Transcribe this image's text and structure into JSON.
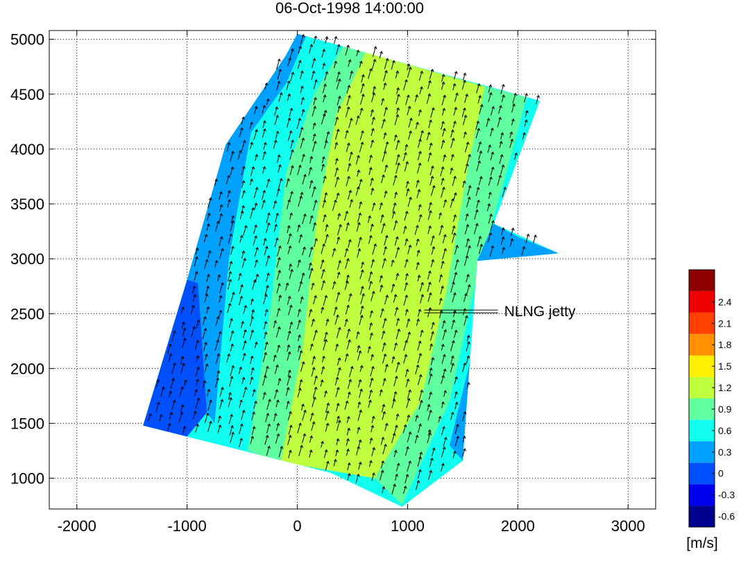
{
  "chart_data": {
    "type": "heatmap",
    "title": "06-Oct-1998 14:00:00",
    "xlabel": "",
    "ylabel": "",
    "xlim": [
      -2250,
      3250
    ],
    "ylim": [
      720,
      5080
    ],
    "xticks": [
      -2000,
      -1000,
      0,
      1000,
      2000,
      3000
    ],
    "xtick_labels": [
      "-2000",
      "-1000",
      "0",
      "1000",
      "2000",
      "3000"
    ],
    "yticks": [
      1000,
      1500,
      2000,
      2500,
      3000,
      3500,
      4000,
      4500,
      5000
    ],
    "ytick_labels": [
      "1000",
      "1500",
      "2000",
      "2500",
      "3000",
      "3500",
      "4000",
      "4500",
      "5000"
    ],
    "grid": true,
    "annotation": {
      "text": "NLNG jetty",
      "x": 1150,
      "y": 2520,
      "x_end": 1820
    },
    "colorbar": {
      "unit_label": "[m/s]",
      "tick_labels": [
        "2.4",
        "2.1",
        "1.8",
        "1.5",
        "1.2",
        "0.9",
        "0.6",
        "0.3",
        "0",
        "-0.3",
        "-0.6"
      ],
      "levels": [
        {
          "lower": -0.75,
          "upper": -0.45,
          "color": "#00008f"
        },
        {
          "lower": -0.45,
          "upper": -0.15,
          "color": "#0000ef"
        },
        {
          "lower": -0.15,
          "upper": 0.15,
          "color": "#0050ff"
        },
        {
          "lower": 0.15,
          "upper": 0.45,
          "color": "#00a0ff"
        },
        {
          "lower": 0.45,
          "upper": 0.75,
          "color": "#10ffef"
        },
        {
          "lower": 0.75,
          "upper": 1.05,
          "color": "#60ffa0"
        },
        {
          "lower": 1.05,
          "upper": 1.35,
          "color": "#bfff40"
        },
        {
          "lower": 1.35,
          "upper": 1.65,
          "color": "#ffef00"
        },
        {
          "lower": 1.65,
          "upper": 1.95,
          "color": "#ff9000"
        },
        {
          "lower": 1.95,
          "upper": 2.25,
          "color": "#ff4000"
        },
        {
          "lower": 2.25,
          "upper": 2.55,
          "color": "#ef0000"
        },
        {
          "lower": 2.55,
          "upper": 2.85,
          "color": "#8f0000"
        }
      ]
    },
    "domain_outline": [
      [
        -1400,
        1480
      ],
      [
        -1000,
        2810
      ],
      [
        -650,
        4040
      ],
      [
        -300,
        4560
      ],
      [
        -100,
        4860
      ],
      [
        0,
        5050
      ],
      [
        2200,
        4440
      ],
      [
        1780,
        3320
      ],
      [
        2370,
        3050
      ],
      [
        1630,
        2980
      ],
      [
        1500,
        1160
      ],
      [
        950,
        740
      ],
      [
        300,
        1050
      ]
    ],
    "velocity_bands": [
      {
        "value": 0.0,
        "color": "#0050ff",
        "polygon": [
          [
            -1400,
            1480
          ],
          [
            -1000,
            2810
          ],
          [
            -900,
            2780
          ],
          [
            -820,
            1600
          ],
          [
            -1000,
            1380
          ]
        ]
      },
      {
        "value": 0.3,
        "color": "#00a0ff",
        "polygon": [
          [
            -1000,
            2810
          ],
          [
            -650,
            4040
          ],
          [
            -300,
            4560
          ],
          [
            -100,
            4860
          ],
          [
            0,
            5050
          ],
          [
            80,
            5030
          ],
          [
            -100,
            4600
          ],
          [
            -420,
            4150
          ],
          [
            -620,
            3000
          ],
          [
            -750,
            1500
          ],
          [
            -820,
            1600
          ],
          [
            -900,
            2780
          ]
        ]
      },
      {
        "value": 0.6,
        "color": "#10ffef",
        "polygon": [
          [
            -750,
            1500
          ],
          [
            -620,
            3000
          ],
          [
            -420,
            4150
          ],
          [
            -100,
            4600
          ],
          [
            80,
            5030
          ],
          [
            420,
            4950
          ],
          [
            150,
            4500
          ],
          [
            -100,
            3800
          ],
          [
            -250,
            2500
          ],
          [
            -450,
            1250
          ]
        ]
      },
      {
        "value": 0.9,
        "color": "#60ffa0",
        "polygon": [
          [
            -450,
            1250
          ],
          [
            -250,
            2500
          ],
          [
            -100,
            3800
          ],
          [
            150,
            4500
          ],
          [
            420,
            4950
          ],
          [
            620,
            4880
          ],
          [
            350,
            4300
          ],
          [
            180,
            3400
          ],
          [
            50,
            2200
          ],
          [
            -150,
            1150
          ]
        ]
      },
      {
        "value": 1.2,
        "color": "#bfff40",
        "polygon": [
          [
            -150,
            1150
          ],
          [
            50,
            2200
          ],
          [
            180,
            3400
          ],
          [
            350,
            4300
          ],
          [
            620,
            4880
          ],
          [
            1700,
            4570
          ],
          [
            1550,
            3850
          ],
          [
            1350,
            2700
          ],
          [
            1120,
            1700
          ],
          [
            700,
            1000
          ]
        ]
      },
      {
        "value": 0.9,
        "color": "#60ffa0",
        "polygon": [
          [
            700,
            1000
          ],
          [
            1120,
            1700
          ],
          [
            1350,
            2700
          ],
          [
            1550,
            3850
          ],
          [
            1700,
            4570
          ],
          [
            2080,
            4470
          ],
          [
            1900,
            3800
          ],
          [
            1620,
            2800
          ],
          [
            1380,
            1700
          ],
          [
            950,
            760
          ]
        ]
      },
      {
        "value": 0.6,
        "color": "#10ffef",
        "polygon": [
          [
            950,
            760
          ],
          [
            1380,
            1700
          ],
          [
            1620,
            2800
          ],
          [
            1900,
            3800
          ],
          [
            2080,
            4470
          ],
          [
            2200,
            4440
          ],
          [
            1780,
            3320
          ],
          [
            1630,
            2980
          ],
          [
            1500,
            1160
          ]
        ]
      },
      {
        "value": 0.3,
        "color": "#00a0ff",
        "polygon": [
          [
            1500,
            1160
          ],
          [
            1630,
            2980
          ],
          [
            1700,
            3100
          ],
          [
            1600,
            2200
          ],
          [
            1380,
            1300
          ]
        ]
      },
      {
        "value": 0.3,
        "color": "#00a0ff",
        "polygon": [
          [
            1630,
            2980
          ],
          [
            1780,
            3320
          ],
          [
            2000,
            3200
          ],
          [
            2370,
            3050
          ],
          [
            2100,
            3020
          ]
        ]
      }
    ]
  }
}
